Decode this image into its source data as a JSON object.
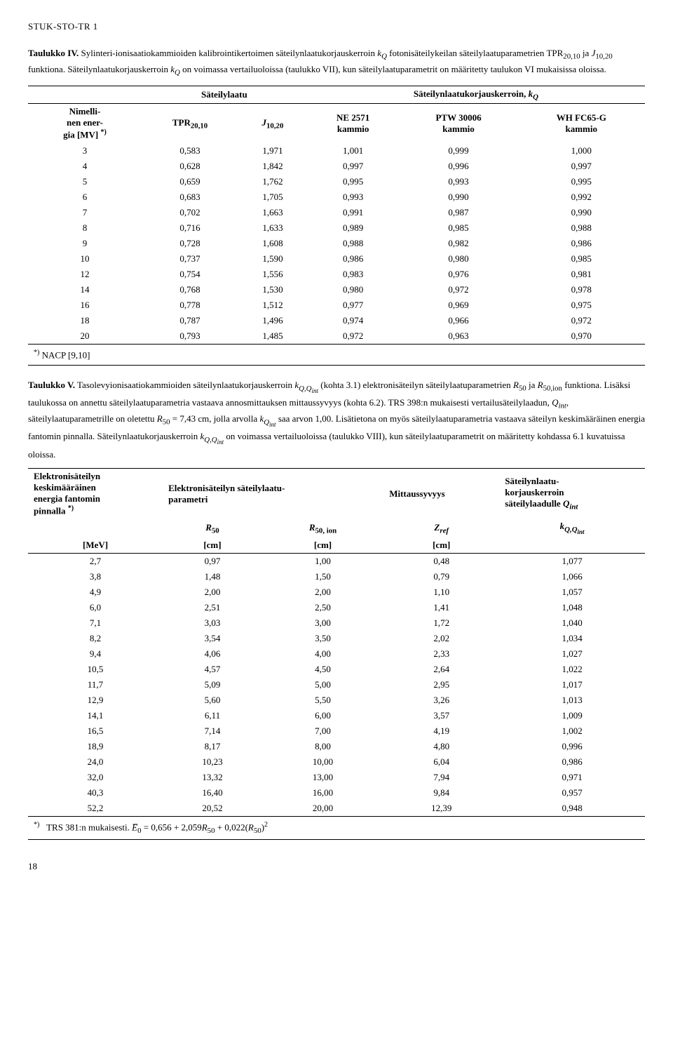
{
  "doc_header": "STUK-STO-TR 1",
  "table4": {
    "caption": "Taulukko IV. Sylinteri-ionisaatiokammioiden kalibrointikertoimen säteilynlaatukorjauskerroin k_Q fotonisäteilykeilan säteilylaatuparametrien TPR_{20,10} ja J_{10,20} funktiona. Säteilynlaatukorjauskerroin k_Q on voimassa vertailuoloissa (taulukko VII), kun säteilylaatuparametrit on määritetty taulukon VI mukaisissa oloissa.",
    "group_left": "Säteilylaatu",
    "group_right": "Säteilynlaatukorjauskerroin, k_Q",
    "col_energy": "Nimellinen energia [MV] *)",
    "col_tpr": "TPR_{20,10}",
    "col_j": "J_{10,20}",
    "col_ne": "NE 2571 kammio",
    "col_ptw": "PTW 30006 kammio",
    "col_wh": "WH FC65-G kammio",
    "rows": [
      [
        "3",
        "0,583",
        "1,971",
        "1,001",
        "0,999",
        "1,000"
      ],
      [
        "4",
        "0,628",
        "1,842",
        "0,997",
        "0,996",
        "0,997"
      ],
      [
        "5",
        "0,659",
        "1,762",
        "0,995",
        "0,993",
        "0,995"
      ],
      [
        "6",
        "0,683",
        "1,705",
        "0,993",
        "0,990",
        "0,992"
      ],
      [
        "7",
        "0,702",
        "1,663",
        "0,991",
        "0,987",
        "0,990"
      ],
      [
        "8",
        "0,716",
        "1,633",
        "0,989",
        "0,985",
        "0,988"
      ],
      [
        "9",
        "0,728",
        "1,608",
        "0,988",
        "0,982",
        "0,986"
      ],
      [
        "10",
        "0,737",
        "1,590",
        "0,986",
        "0,980",
        "0,985"
      ],
      [
        "12",
        "0,754",
        "1,556",
        "0,983",
        "0,976",
        "0,981"
      ],
      [
        "14",
        "0,768",
        "1,530",
        "0,980",
        "0,972",
        "0,978"
      ],
      [
        "16",
        "0,778",
        "1,512",
        "0,977",
        "0,969",
        "0,975"
      ],
      [
        "18",
        "0,787",
        "1,496",
        "0,974",
        "0,966",
        "0,972"
      ],
      [
        "20",
        "0,793",
        "1,485",
        "0,972",
        "0,963",
        "0,970"
      ]
    ],
    "footnote": "*) NACP [9,10]"
  },
  "table5": {
    "caption": "Taulukko V. Tasolevyionisaatiokammioiden säteilynlaatukorjauskerroin k_{Q,Q_int} (kohta 3.1) elektronisäteilyn säteilylaatuparametrien R_{50} ja R_{50,ion} funktiona. Lisäksi taulukossa on annettu säteilylaatuparametria vastaava annosmittauksen mittaussyvyys (kohta 6.2). TRS 398:n mukaisesti vertailusäteilylaadun, Q_{int}, säteilylaatuparametrille on oletettu R_{50} = 7,43 cm, jolla arvolla k_{Q_int} saa arvon 1,00. Lisätietona on myös säteilylaatuparametria vastaava säteilyn keskimääräinen energia fantomin pinnalla. Säteilynlaatukorjauskerroin k_{Q,Q_int} on voimassa vertailuoloissa (taulukko VIII), kun säteilylaatuparametrit on määritetty kohdassa 6.1 kuvatuissa oloissa.",
    "h_energy": "Elektronisäteilyn keskimääräinen energia fantomin pinnalla *)",
    "h_param": "Elektronisäteilyn säteilylaatuparametri",
    "h_depth": "Mittaussyvyys",
    "h_corr": "Säteilynlaatukorjauskerroin säteilylaadulle Q_int",
    "sub_r50": "R_{50}",
    "sub_r50ion": "R_{50, ion}",
    "sub_zref": "Z_{ref}",
    "sub_k": "k_{Q,Q_int}",
    "unit_mev": "[MeV]",
    "unit_cm": "[cm]",
    "rows": [
      [
        "2,7",
        "0,97",
        "1,00",
        "0,48",
        "1,077"
      ],
      [
        "3,8",
        "1,48",
        "1,50",
        "0,79",
        "1,066"
      ],
      [
        "4,9",
        "2,00",
        "2,00",
        "1,10",
        "1,057"
      ],
      [
        "6,0",
        "2,51",
        "2,50",
        "1,41",
        "1,048"
      ],
      [
        "7,1",
        "3,03",
        "3,00",
        "1,72",
        "1,040"
      ],
      [
        "8,2",
        "3,54",
        "3,50",
        "2,02",
        "1,034"
      ],
      [
        "9,4",
        "4,06",
        "4,00",
        "2,33",
        "1,027"
      ],
      [
        "10,5",
        "4,57",
        "4,50",
        "2,64",
        "1,022"
      ],
      [
        "11,7",
        "5,09",
        "5,00",
        "2,95",
        "1,017"
      ],
      [
        "12,9",
        "5,60",
        "5,50",
        "3,26",
        "1,013"
      ],
      [
        "14,1",
        "6,11",
        "6,00",
        "3,57",
        "1,009"
      ],
      [
        "16,5",
        "7,14",
        "7,00",
        "4,19",
        "1,002"
      ],
      [
        "18,9",
        "8,17",
        "8,00",
        "4,80",
        "0,996"
      ],
      [
        "24,0",
        "10,23",
        "10,00",
        "6,04",
        "0,986"
      ],
      [
        "32,0",
        "13,32",
        "13,00",
        "7,94",
        "0,971"
      ],
      [
        "40,3",
        "16,40",
        "16,00",
        "9,84",
        "0,957"
      ],
      [
        "52,2",
        "20,52",
        "20,00",
        "12,39",
        "0,948"
      ]
    ],
    "footnote": "*)   TRS 381:n mukaisesti. E̅₀ = 0,656 + 2,059R₅₀ + 0,022(R₅₀)²"
  },
  "page_number": "18"
}
